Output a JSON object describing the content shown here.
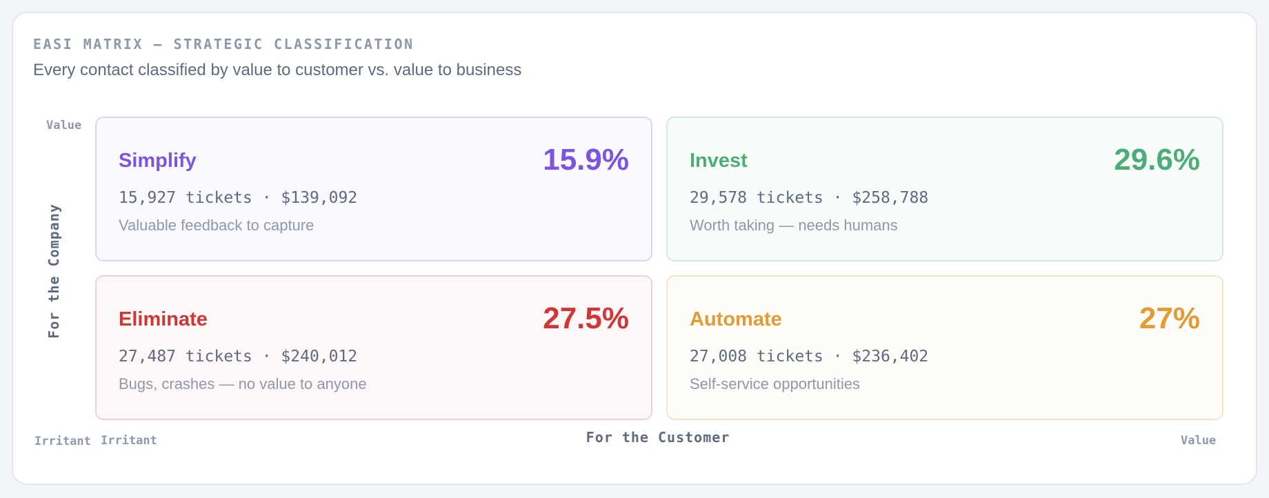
{
  "header": {
    "eyebrow": "EASI MATRIX — STRATEGIC CLASSIFICATION",
    "subtitle": "Every contact classified by value to customer vs. value to business"
  },
  "chart_data": {
    "type": "table",
    "y_axis": {
      "title": "For the Company",
      "top_label": "Value",
      "bottom_label": "Irritant"
    },
    "x_axis": {
      "title": "For the Customer",
      "left_label": "Irritant",
      "right_label": "Value"
    },
    "quadrants": [
      {
        "id": "simplify",
        "name": "Simplify",
        "percent_label": "15.9%",
        "percent": 15.9,
        "tickets": 15927,
        "value_usd": 139092,
        "stats_label": "15,927 tickets · $139,092",
        "description": "Valuable feedback to capture",
        "company": "Value",
        "customer": "Irritant",
        "color": "#7b55de",
        "bg_color": "#faf9ff",
        "border_color": "#dcd3f8"
      },
      {
        "id": "invest",
        "name": "Invest",
        "percent_label": "29.6%",
        "percent": 29.6,
        "tickets": 29578,
        "value_usd": 258788,
        "stats_label": "29,578 tickets · $258,788",
        "description": "Worth taking — needs humans",
        "company": "Value",
        "customer": "Value",
        "color": "#4cad78",
        "bg_color": "#f7fcf9",
        "border_color": "#d2ebdc"
      },
      {
        "id": "eliminate",
        "name": "Eliminate",
        "percent_label": "27.5%",
        "percent": 27.5,
        "tickets": 27487,
        "value_usd": 240012,
        "stats_label": "27,487 tickets · $240,012",
        "description": "Bugs, crashes — no value to anyone",
        "company": "Irritant",
        "customer": "Irritant",
        "color": "#cf3737",
        "bg_color": "#fdf7f7",
        "border_color": "#f5cfcf"
      },
      {
        "id": "automate",
        "name": "Automate",
        "percent_label": "27%",
        "percent": 27,
        "tickets": 27008,
        "value_usd": 236402,
        "stats_label": "27,008 tickets · $236,402",
        "description": "Self-service opportunities",
        "company": "Irritant",
        "customer": "Value",
        "color": "#e39b34",
        "bg_color": "#fefcf8",
        "border_color": "#f6e5c6"
      }
    ]
  }
}
